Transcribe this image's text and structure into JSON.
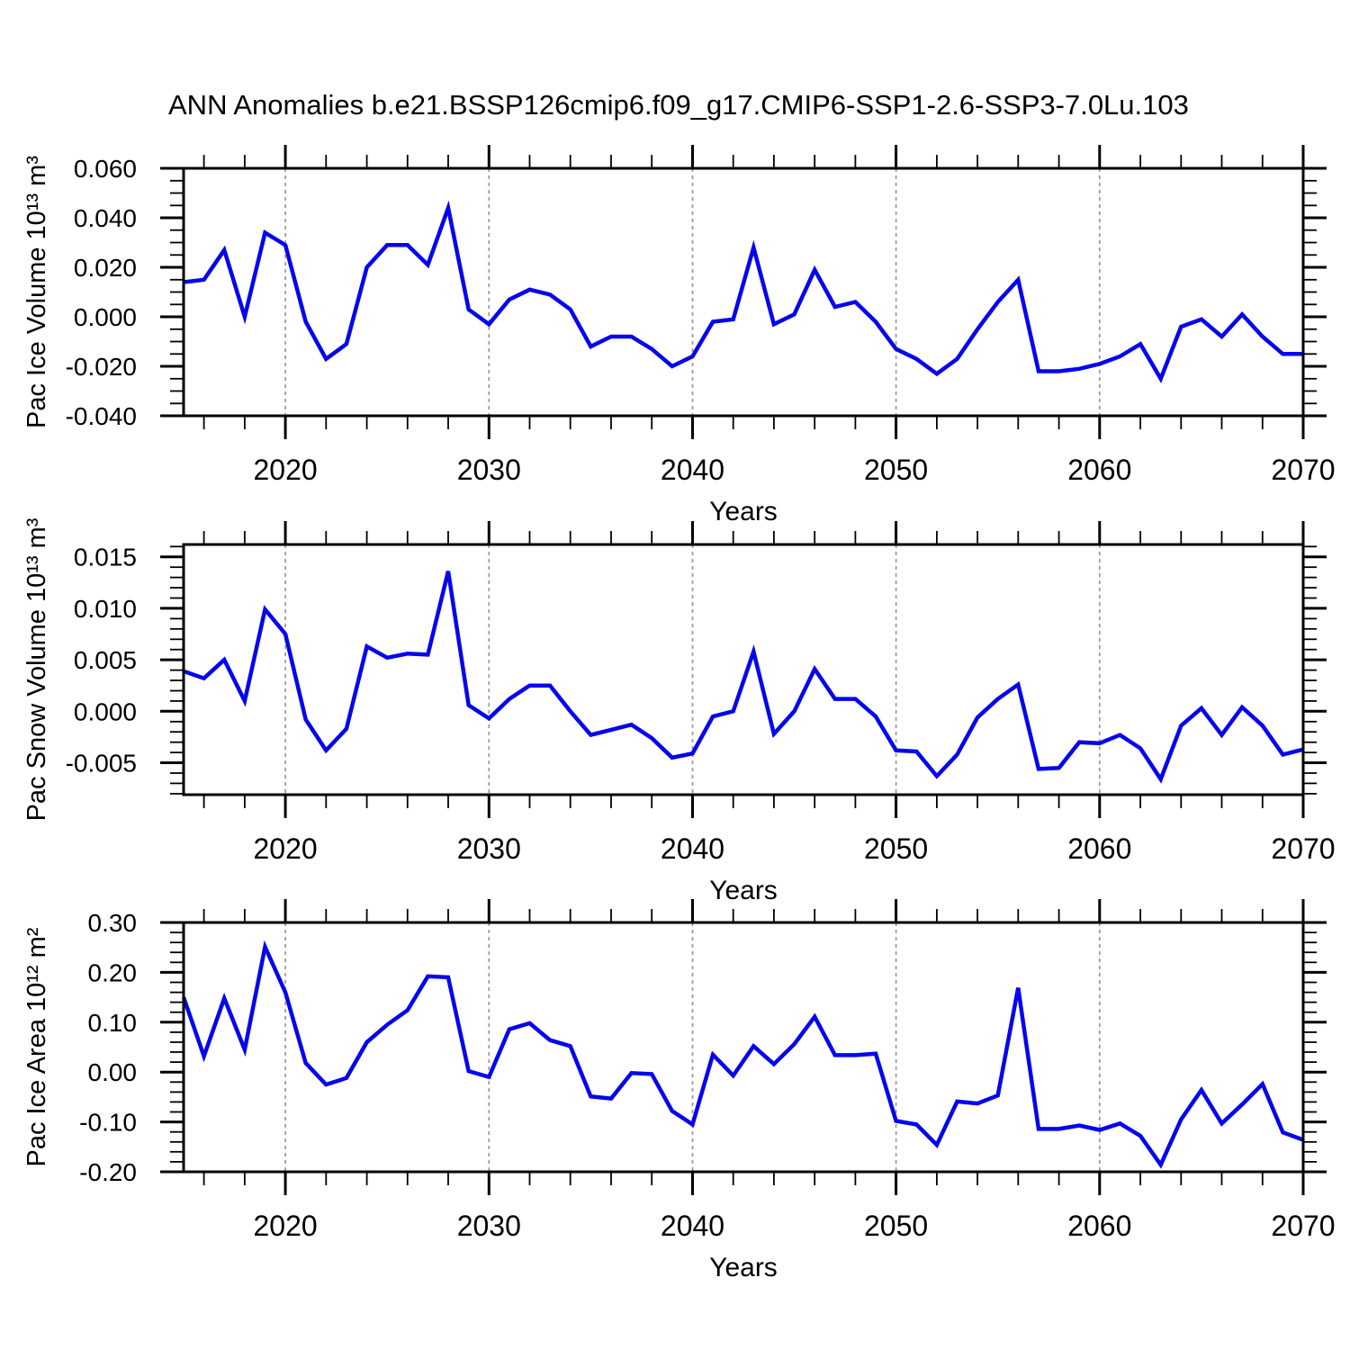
{
  "title": "ANN Anomalies b.e21.BSSP126cmip6.f09_g17.CMIP6-SSP1-2.6-SSP3-7.0Lu.103",
  "line_color": "#0505ee",
  "gridline_color": "#999999",
  "chart_data": {
    "type": "line",
    "x_label": "Years",
    "legend": "none",
    "grid": "vertical-dashed-at-decades",
    "years": [
      2015,
      2016,
      2017,
      2018,
      2019,
      2020,
      2021,
      2022,
      2023,
      2024,
      2025,
      2026,
      2027,
      2028,
      2029,
      2030,
      2031,
      2032,
      2033,
      2034,
      2035,
      2036,
      2037,
      2038,
      2039,
      2040,
      2041,
      2042,
      2043,
      2044,
      2045,
      2046,
      2047,
      2048,
      2049,
      2050,
      2051,
      2052,
      2053,
      2054,
      2055,
      2056,
      2057,
      2058,
      2059,
      2060,
      2061,
      2062,
      2063,
      2064,
      2065,
      2066,
      2067,
      2068,
      2069,
      2070
    ],
    "x_tick_labels": [
      "2020",
      "2030",
      "2040",
      "2050",
      "2060",
      "2070"
    ],
    "x_ticks": [
      2020,
      2030,
      2040,
      2050,
      2060,
      2070
    ],
    "x_minor_step": 2,
    "grid_years": [
      2020,
      2030,
      2040,
      2050,
      2060
    ],
    "xlim": [
      2015,
      2070
    ],
    "charts": [
      {
        "y_label": "Pac Ice Volume 10¹³ m³",
        "y_tick_labels": [
          "0.060",
          "0.040",
          "0.020",
          "0.000",
          "-0.020",
          "-0.040"
        ],
        "y_ticks": [
          0.06,
          0.04,
          0.02,
          0.0,
          -0.02,
          -0.04
        ],
        "y_minor_step": 0.005,
        "ylim": [
          -0.04,
          0.06
        ],
        "values": [
          0.014,
          0.015,
          0.027,
          0.0,
          0.034,
          0.029,
          -0.002,
          -0.017,
          -0.011,
          0.02,
          0.029,
          0.029,
          0.021,
          0.044,
          0.003,
          -0.003,
          0.007,
          0.011,
          0.009,
          0.003,
          -0.012,
          -0.008,
          -0.008,
          -0.013,
          -0.02,
          -0.016,
          -0.002,
          -0.001,
          0.028,
          -0.003,
          0.001,
          0.019,
          0.004,
          0.006,
          -0.002,
          -0.013,
          -0.017,
          -0.023,
          -0.017,
          -0.005,
          0.006,
          0.015,
          -0.022,
          -0.022,
          -0.021,
          -0.019,
          -0.016,
          -0.011,
          -0.025,
          -0.004,
          -0.001,
          -0.008,
          0.001,
          -0.008,
          -0.015,
          -0.015
        ]
      },
      {
        "y_label": "Pac Snow Volume 10¹³ m³",
        "y_tick_labels": [
          "0.015",
          "0.010",
          "0.005",
          "0.000",
          "-0.005"
        ],
        "y_ticks": [
          0.015,
          0.01,
          0.005,
          0.0,
          -0.005
        ],
        "y_minor_step": 0.001,
        "ylim": [
          -0.0081,
          0.0162
        ],
        "values": [
          0.0039,
          0.0032,
          0.005,
          0.001,
          0.0099,
          0.0075,
          -0.0008,
          -0.0038,
          -0.0017,
          0.0063,
          0.0052,
          0.0056,
          0.0055,
          0.0136,
          0.0006,
          -0.0007,
          0.0012,
          0.0025,
          0.0025,
          0.0,
          -0.0023,
          -0.0018,
          -0.0013,
          -0.0026,
          -0.0045,
          -0.0041,
          -0.0005,
          0.0,
          0.0058,
          -0.0022,
          0.0,
          0.0041,
          0.0012,
          0.0012,
          -0.0005,
          -0.0038,
          -0.0039,
          -0.0063,
          -0.0042,
          -0.0006,
          0.0012,
          0.0026,
          -0.0056,
          -0.0055,
          -0.003,
          -0.0031,
          -0.0023,
          -0.0036,
          -0.0066,
          -0.0014,
          0.0003,
          -0.0023,
          0.0004,
          -0.0014,
          -0.0042,
          -0.0037
        ]
      },
      {
        "y_label": "Pac Ice Area 10¹² m²",
        "y_tick_labels": [
          "0.30",
          "0.20",
          "0.10",
          "0.00",
          "-0.10",
          "-0.20"
        ],
        "y_ticks": [
          0.3,
          0.2,
          0.1,
          0.0,
          -0.1,
          -0.2
        ],
        "y_minor_step": 0.02,
        "ylim": [
          -0.2,
          0.3
        ],
        "values": [
          0.15,
          0.032,
          0.148,
          0.045,
          0.251,
          0.16,
          0.018,
          -0.025,
          -0.012,
          0.06,
          0.095,
          0.124,
          0.192,
          0.19,
          0.002,
          -0.01,
          0.086,
          0.098,
          0.064,
          0.052,
          -0.049,
          -0.053,
          -0.002,
          -0.004,
          -0.078,
          -0.105,
          0.035,
          -0.007,
          0.052,
          0.016,
          0.056,
          0.111,
          0.034,
          0.034,
          0.037,
          -0.098,
          -0.105,
          -0.146,
          -0.059,
          -0.063,
          -0.047,
          0.169,
          -0.114,
          -0.114,
          -0.107,
          -0.116,
          -0.103,
          -0.128,
          -0.186,
          -0.095,
          -0.036,
          -0.103,
          -0.065,
          -0.024,
          -0.121,
          -0.136
        ]
      }
    ]
  }
}
